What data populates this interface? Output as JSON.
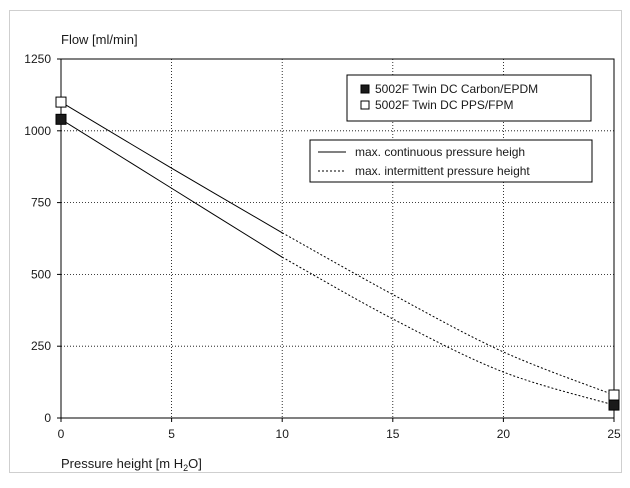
{
  "chart_data": {
    "type": "line",
    "ylabel": "Flow [ml/min]",
    "xlabel_main": "Pressure height [m H",
    "xlabel_sub": "2",
    "xlabel_end": "O]",
    "xlim": [
      0,
      25
    ],
    "ylim": [
      0,
      1250
    ],
    "x_ticks": [
      0,
      5,
      10,
      15,
      20,
      25
    ],
    "y_ticks": [
      0,
      250,
      500,
      750,
      1000,
      1250
    ],
    "grid": true,
    "series": [
      {
        "name": "5002F Twin DC Carbon/EPDM",
        "marker": "filled-square",
        "continuous": [
          [
            0,
            1040
          ],
          [
            5,
            800
          ],
          [
            10,
            560
          ]
        ],
        "intermittent": [
          [
            10,
            560
          ],
          [
            15,
            345
          ],
          [
            20,
            160
          ],
          [
            25,
            45
          ]
        ],
        "end_markers": [
          [
            0,
            1040
          ],
          [
            25,
            45
          ]
        ]
      },
      {
        "name": "5002F Twin DC PPS/FPM",
        "marker": "open-square",
        "continuous": [
          [
            0,
            1100
          ],
          [
            5,
            870
          ],
          [
            10,
            645
          ]
        ],
        "intermittent": [
          [
            10,
            645
          ],
          [
            15,
            430
          ],
          [
            20,
            230
          ],
          [
            25,
            80
          ]
        ],
        "end_markers": [
          [
            0,
            1100
          ],
          [
            25,
            80
          ]
        ]
      }
    ],
    "legend_markers": {
      "items": [
        "5002F Twin DC Carbon/EPDM",
        "5002F Twin DC PPS/FPM"
      ],
      "placement": "top-right"
    },
    "legend_lines": {
      "items": [
        {
          "label": "max. continuous pressure heigh",
          "style": "solid"
        },
        {
          "label": "max. intermittent pressure height",
          "style": "dotted"
        }
      ],
      "placement": "upper-right"
    }
  }
}
